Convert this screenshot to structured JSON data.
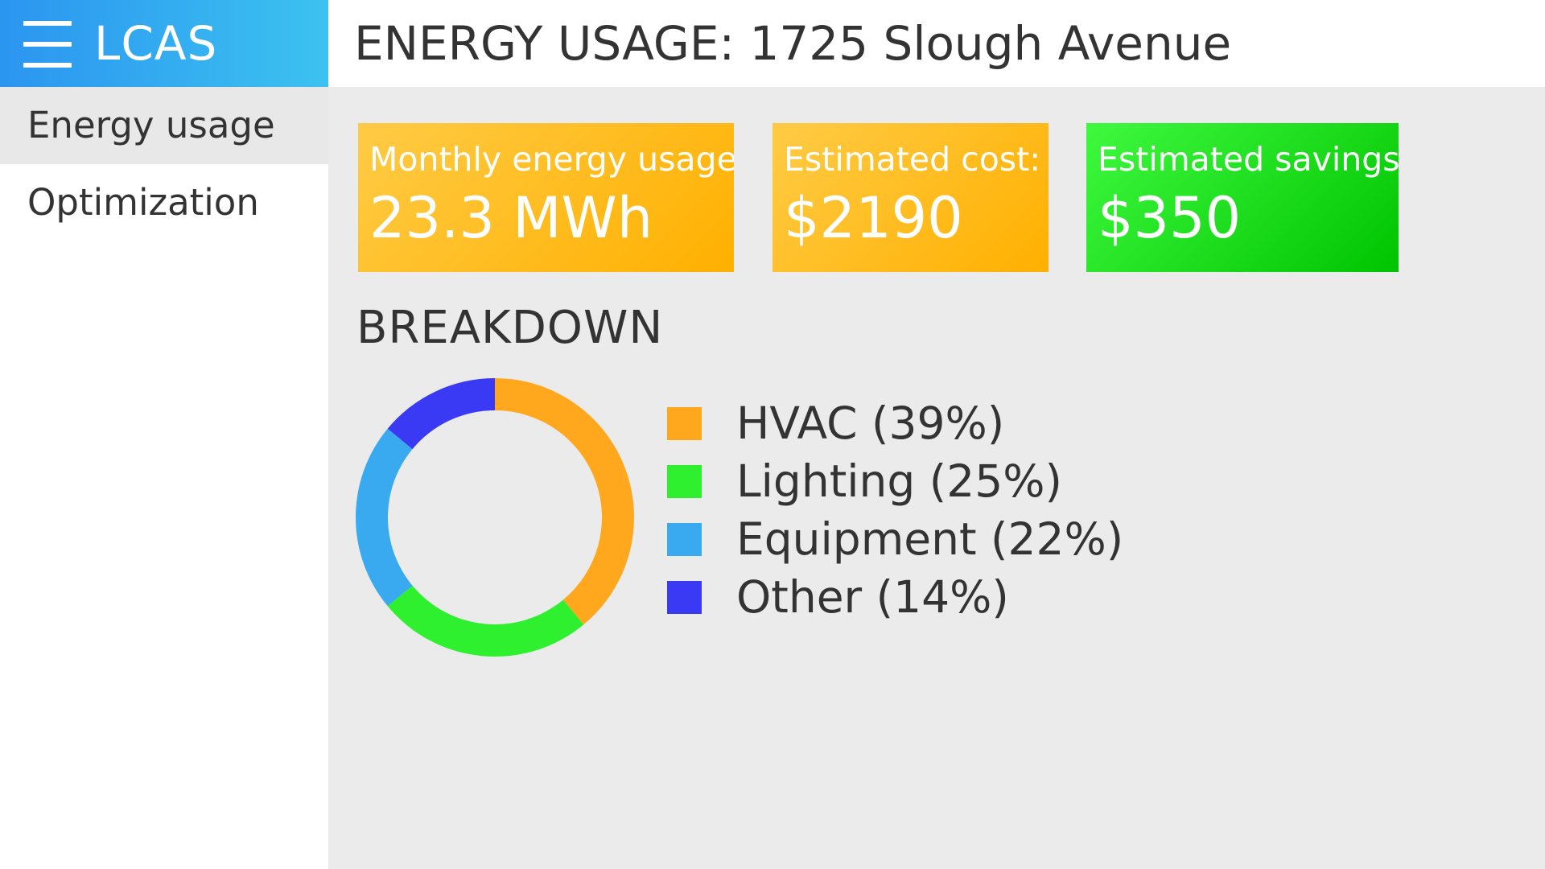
{
  "app": {
    "name": "LCAS",
    "menu_icon": "hamburger-menu-icon",
    "brand_colors": [
      "#2b95f0",
      "#3cc2f0"
    ]
  },
  "sidebar": {
    "items": [
      {
        "label": "Energy usage",
        "active": true
      },
      {
        "label": "Optimization",
        "active": false
      }
    ]
  },
  "header": {
    "title": "ENERGY USAGE: 1725 Slough Avenue"
  },
  "cards": [
    {
      "label": "Monthly energy usage:",
      "value": "23.3 MWh",
      "color": "#ffb000"
    },
    {
      "label": "Estimated cost:",
      "value": "$2190",
      "color": "#ffb000"
    },
    {
      "label": "Estimated savings:",
      "value": "$350",
      "color": "#00c400"
    }
  ],
  "breakdown": {
    "title": "BREAKDOWN"
  },
  "chart_data": {
    "type": "pie",
    "donut": true,
    "categories": [
      "HVAC",
      "Lighting",
      "Equipment",
      "Other"
    ],
    "values": [
      39,
      25,
      22,
      14
    ],
    "unit": "%",
    "colors": [
      "#ffa81e",
      "#2ef02e",
      "#3aaaf0",
      "#3a3af5"
    ],
    "legend_labels": [
      "HVAC (39%)",
      "Lighting (25%)",
      "Equipment (22%)",
      "Other (14%)"
    ],
    "legend_position": "right"
  }
}
